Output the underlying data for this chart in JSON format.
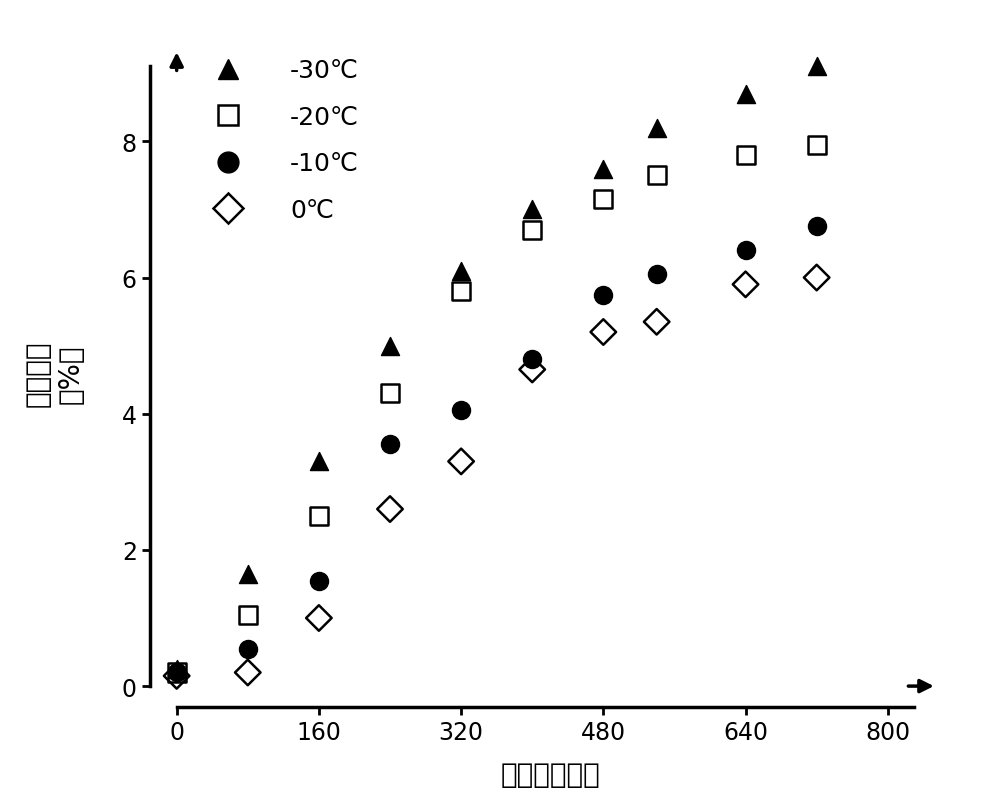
{
  "series": {
    "-30C": {
      "x": [
        0,
        80,
        160,
        240,
        320,
        400,
        480,
        540,
        640,
        720
      ],
      "y": [
        0.25,
        1.65,
        3.3,
        5.0,
        6.1,
        7.0,
        7.6,
        8.2,
        8.7,
        9.1
      ],
      "marker": "^",
      "filled": true,
      "label": "-30℃"
    },
    "-20C": {
      "x": [
        0,
        80,
        160,
        240,
        320,
        400,
        480,
        540,
        640,
        720
      ],
      "y": [
        0.2,
        1.05,
        2.5,
        4.3,
        5.8,
        6.7,
        7.15,
        7.5,
        7.8,
        7.95
      ],
      "marker": "s",
      "filled": false,
      "label": "-20℃"
    },
    "-10C": {
      "x": [
        0,
        80,
        160,
        240,
        320,
        400,
        480,
        540,
        640,
        720
      ],
      "y": [
        0.2,
        0.55,
        1.55,
        3.55,
        4.05,
        4.8,
        5.75,
        6.05,
        6.4,
        6.75
      ],
      "marker": "o",
      "filled": true,
      "label": "-10℃"
    },
    "0C": {
      "x": [
        0,
        80,
        160,
        240,
        320,
        400,
        480,
        540,
        640,
        720
      ],
      "y": [
        0.15,
        0.2,
        1.0,
        2.6,
        3.3,
        4.65,
        5.2,
        5.35,
        5.9,
        6.0
      ],
      "marker": "D",
      "filled": false,
      "label": "0℃"
    }
  },
  "xlabel": "循环加热次数",
  "ylabel_line1": "容量损失",
  "ylabel_line2": "（%）",
  "xlim_min": -30,
  "xlim_max": 870,
  "ylim_min": -0.3,
  "ylim_max": 9.5,
  "xticks": [
    0,
    160,
    320,
    480,
    640,
    800
  ],
  "yticks": [
    0,
    2,
    4,
    6,
    8
  ],
  "background_color": "#ffffff",
  "marker_size": 13,
  "spine_lw": 2.5
}
